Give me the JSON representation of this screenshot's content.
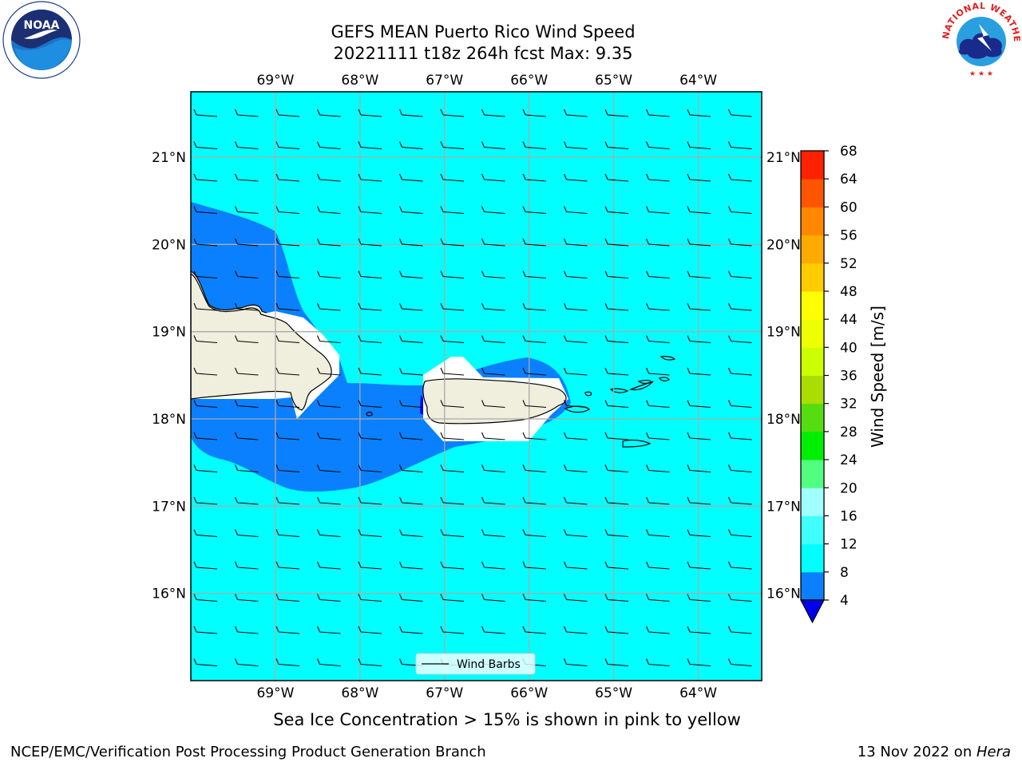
{
  "title": {
    "line1": "GEFS MEAN Puerto Rico Wind Speed",
    "line2": "20221111 t18z 264h fcst   Max: 9.35"
  },
  "map": {
    "lon_range": [
      -70.0,
      -63.25
    ],
    "lat_range": [
      15.0,
      21.75
    ],
    "lon_ticks": [
      -69,
      -68,
      -67,
      -66,
      -65,
      -64
    ],
    "lat_ticks": [
      16,
      17,
      18,
      19,
      20,
      21
    ],
    "lon_tick_labels": [
      "69°W",
      "68°W",
      "67°W",
      "66°W",
      "65°W",
      "64°W"
    ],
    "lat_tick_labels": [
      "16°N",
      "17°N",
      "18°N",
      "19°N",
      "20°N",
      "21°N"
    ],
    "gridlines": true,
    "ocean_color": "#00ffff",
    "calm_band_color": "#0a80ff",
    "land_color": "#f0eedc",
    "barb_description": "easterly light winds across domain"
  },
  "legend": {
    "label": "Wind Barbs"
  },
  "colorbar": {
    "label": "Wind Speed [m/s]",
    "levels": [
      4,
      8,
      12,
      16,
      20,
      24,
      28,
      32,
      36,
      40,
      44,
      48,
      52,
      56,
      60,
      64,
      68
    ],
    "colors": [
      "#0a80ff",
      "#00ffff",
      "#40ffff",
      "#a0ffff",
      "#50ff80",
      "#00ee00",
      "#55dd11",
      "#aadd00",
      "#ccff00",
      "#eeff00",
      "#ffff00",
      "#ffcc00",
      "#ffaa00",
      "#ff8800",
      "#ff5500",
      "#ff2200"
    ],
    "under_color": "#0000ee",
    "over_color": "#ff0000"
  },
  "caption": "Sea Ice Concentration > 15% is shown in pink to yellow",
  "footer": {
    "left": "NCEP/EMC/Verification Post Processing Product Generation Branch",
    "right_prefix": "13 Nov 2022 on ",
    "right_machine": "Hera"
  },
  "logos": {
    "noaa": "NOAA",
    "nws": "NATIONAL WEATHER SERVICE"
  }
}
